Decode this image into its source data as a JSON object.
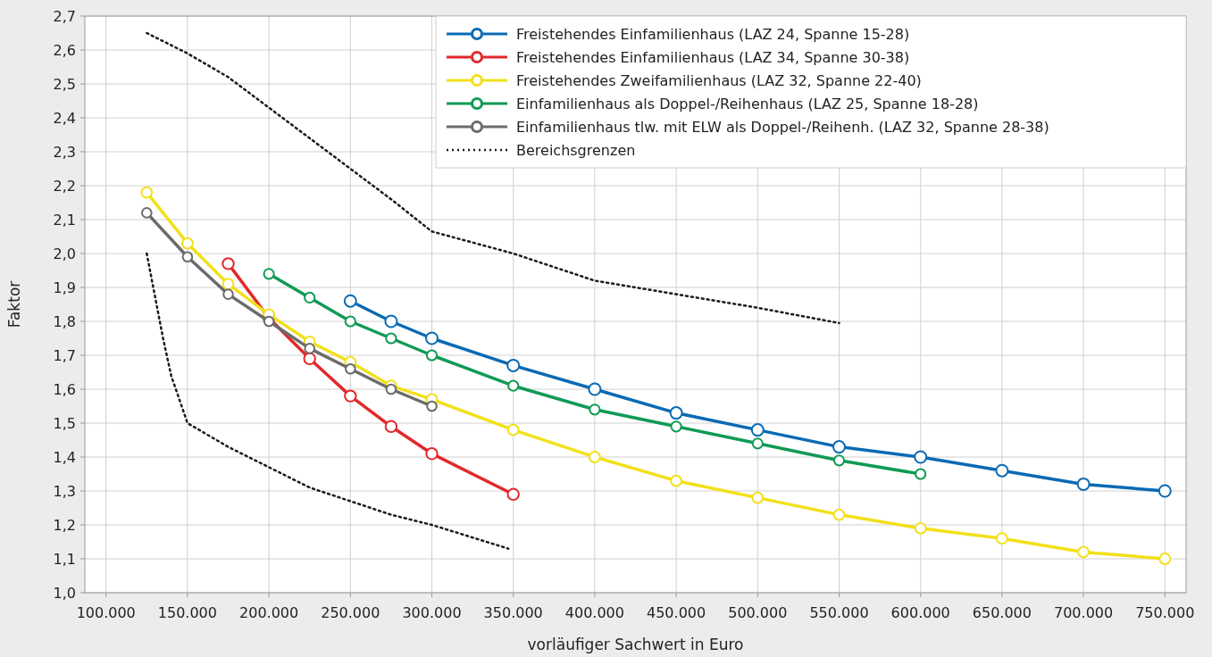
{
  "chart_data": {
    "type": "line",
    "xlabel": "vorläufiger Sachwert in Euro",
    "ylabel": "Faktor",
    "xlim": [
      87000,
      763000
    ],
    "ylim": [
      1.0,
      2.7
    ],
    "xticks": [
      {
        "value": 100000,
        "label": "100.000"
      },
      {
        "value": 150000,
        "label": "150.000"
      },
      {
        "value": 200000,
        "label": "200.000"
      },
      {
        "value": 250000,
        "label": "250.000"
      },
      {
        "value": 300000,
        "label": "300.000"
      },
      {
        "value": 350000,
        "label": "350.000"
      },
      {
        "value": 400000,
        "label": "400.000"
      },
      {
        "value": 450000,
        "label": "450.000"
      },
      {
        "value": 500000,
        "label": "500.000"
      },
      {
        "value": 550000,
        "label": "550.000"
      },
      {
        "value": 600000,
        "label": "600.000"
      },
      {
        "value": 650000,
        "label": "650.000"
      },
      {
        "value": 700000,
        "label": "700.000"
      },
      {
        "value": 750000,
        "label": "750.000"
      }
    ],
    "yticks": [
      {
        "value": 1.0,
        "label": "1,0"
      },
      {
        "value": 1.1,
        "label": "1,1"
      },
      {
        "value": 1.2,
        "label": "1,2"
      },
      {
        "value": 1.3,
        "label": "1,3"
      },
      {
        "value": 1.4,
        "label": "1,4"
      },
      {
        "value": 1.5,
        "label": "1,5"
      },
      {
        "value": 1.6,
        "label": "1,6"
      },
      {
        "value": 1.7,
        "label": "1,7"
      },
      {
        "value": 1.8,
        "label": "1,8"
      },
      {
        "value": 1.9,
        "label": "1,9"
      },
      {
        "value": 2.0,
        "label": "2,0"
      },
      {
        "value": 2.1,
        "label": "2,1"
      },
      {
        "value": 2.2,
        "label": "2,2"
      },
      {
        "value": 2.3,
        "label": "2,3"
      },
      {
        "value": 2.4,
        "label": "2,4"
      },
      {
        "value": 2.5,
        "label": "2,5"
      },
      {
        "value": 2.6,
        "label": "2,6"
      },
      {
        "value": 2.7,
        "label": "2,7"
      }
    ],
    "grid": true,
    "legend": "top right",
    "marker": "circle",
    "line_style": "solid",
    "series": [
      {
        "name": "Freistehendes Einfamilienhaus (LAZ 24, Spanne 15-28)",
        "color": "#0a6ab4",
        "x": [
          250000,
          275000,
          300000,
          350000,
          400000,
          450000,
          500000,
          550000,
          600000,
          650000,
          700000,
          750000
        ],
        "values": [
          1.86,
          1.8,
          1.75,
          1.67,
          1.6,
          1.53,
          1.48,
          1.43,
          1.4,
          1.36,
          1.32,
          1.3
        ]
      },
      {
        "name": "Freistehendes Einfamilienhaus (LAZ 34, Spanne 30-38)",
        "color": "#e3282c",
        "x": [
          175000,
          200000,
          225000,
          250000,
          275000,
          300000,
          350000
        ],
        "values": [
          1.97,
          1.81,
          1.69,
          1.58,
          1.49,
          1.41,
          1.29
        ]
      },
      {
        "name": "Freistehendes Zweifamilienhaus (LAZ 32, Spanne 22-40)",
        "color": "#f2e01a",
        "x": [
          125000,
          150000,
          175000,
          200000,
          225000,
          250000,
          275000,
          300000,
          350000,
          400000,
          450000,
          500000,
          550000,
          600000,
          650000,
          700000,
          750000
        ],
        "values": [
          2.18,
          2.03,
          1.91,
          1.82,
          1.74,
          1.68,
          1.61,
          1.57,
          1.48,
          1.4,
          1.33,
          1.28,
          1.23,
          1.19,
          1.16,
          1.12,
          1.1
        ]
      },
      {
        "name": "Einfamilienhaus als Doppel-/Reihenhaus (LAZ 25, Spanne 18-28)",
        "color": "#0f9a55",
        "x": [
          200000,
          225000,
          250000,
          275000,
          300000,
          350000,
          400000,
          450000,
          500000,
          550000,
          600000
        ],
        "values": [
          1.94,
          1.87,
          1.8,
          1.75,
          1.7,
          1.61,
          1.54,
          1.49,
          1.44,
          1.39,
          1.35
        ]
      },
      {
        "name": "Einfamilienhaus tlw. mit ELW als Doppel-/Reihenh. (LAZ 32, Spanne 28-38)",
        "color": "#6b6b6b",
        "x": [
          125000,
          150000,
          175000,
          200000,
          225000,
          250000,
          275000,
          300000
        ],
        "values": [
          2.12,
          1.99,
          1.88,
          1.8,
          1.72,
          1.66,
          1.6,
          1.55
        ]
      },
      {
        "name": "Bereichsgrenzen",
        "color": "#1a1a1a",
        "line_style": "dotted",
        "marker": "none",
        "x": [
          125000,
          150000,
          175000,
          200000,
          225000,
          250000,
          275000,
          300000,
          350000,
          400000,
          450000,
          500000,
          550000
        ],
        "values": [
          2.65,
          2.59,
          2.52,
          2.43,
          2.34,
          2.25,
          2.16,
          2.065,
          2.0,
          1.92,
          1.88,
          1.84,
          1.795
        ]
      },
      {
        "color": "#1a1a1a",
        "line_style": "dotted",
        "marker": "none",
        "x": [
          125000,
          135000,
          140000,
          150000,
          175000,
          200000,
          225000,
          250000,
          275000,
          300000,
          347000
        ],
        "values": [
          2.0,
          1.75,
          1.64,
          1.5,
          1.43,
          1.37,
          1.31,
          1.27,
          1.23,
          1.2,
          1.13
        ]
      }
    ]
  }
}
